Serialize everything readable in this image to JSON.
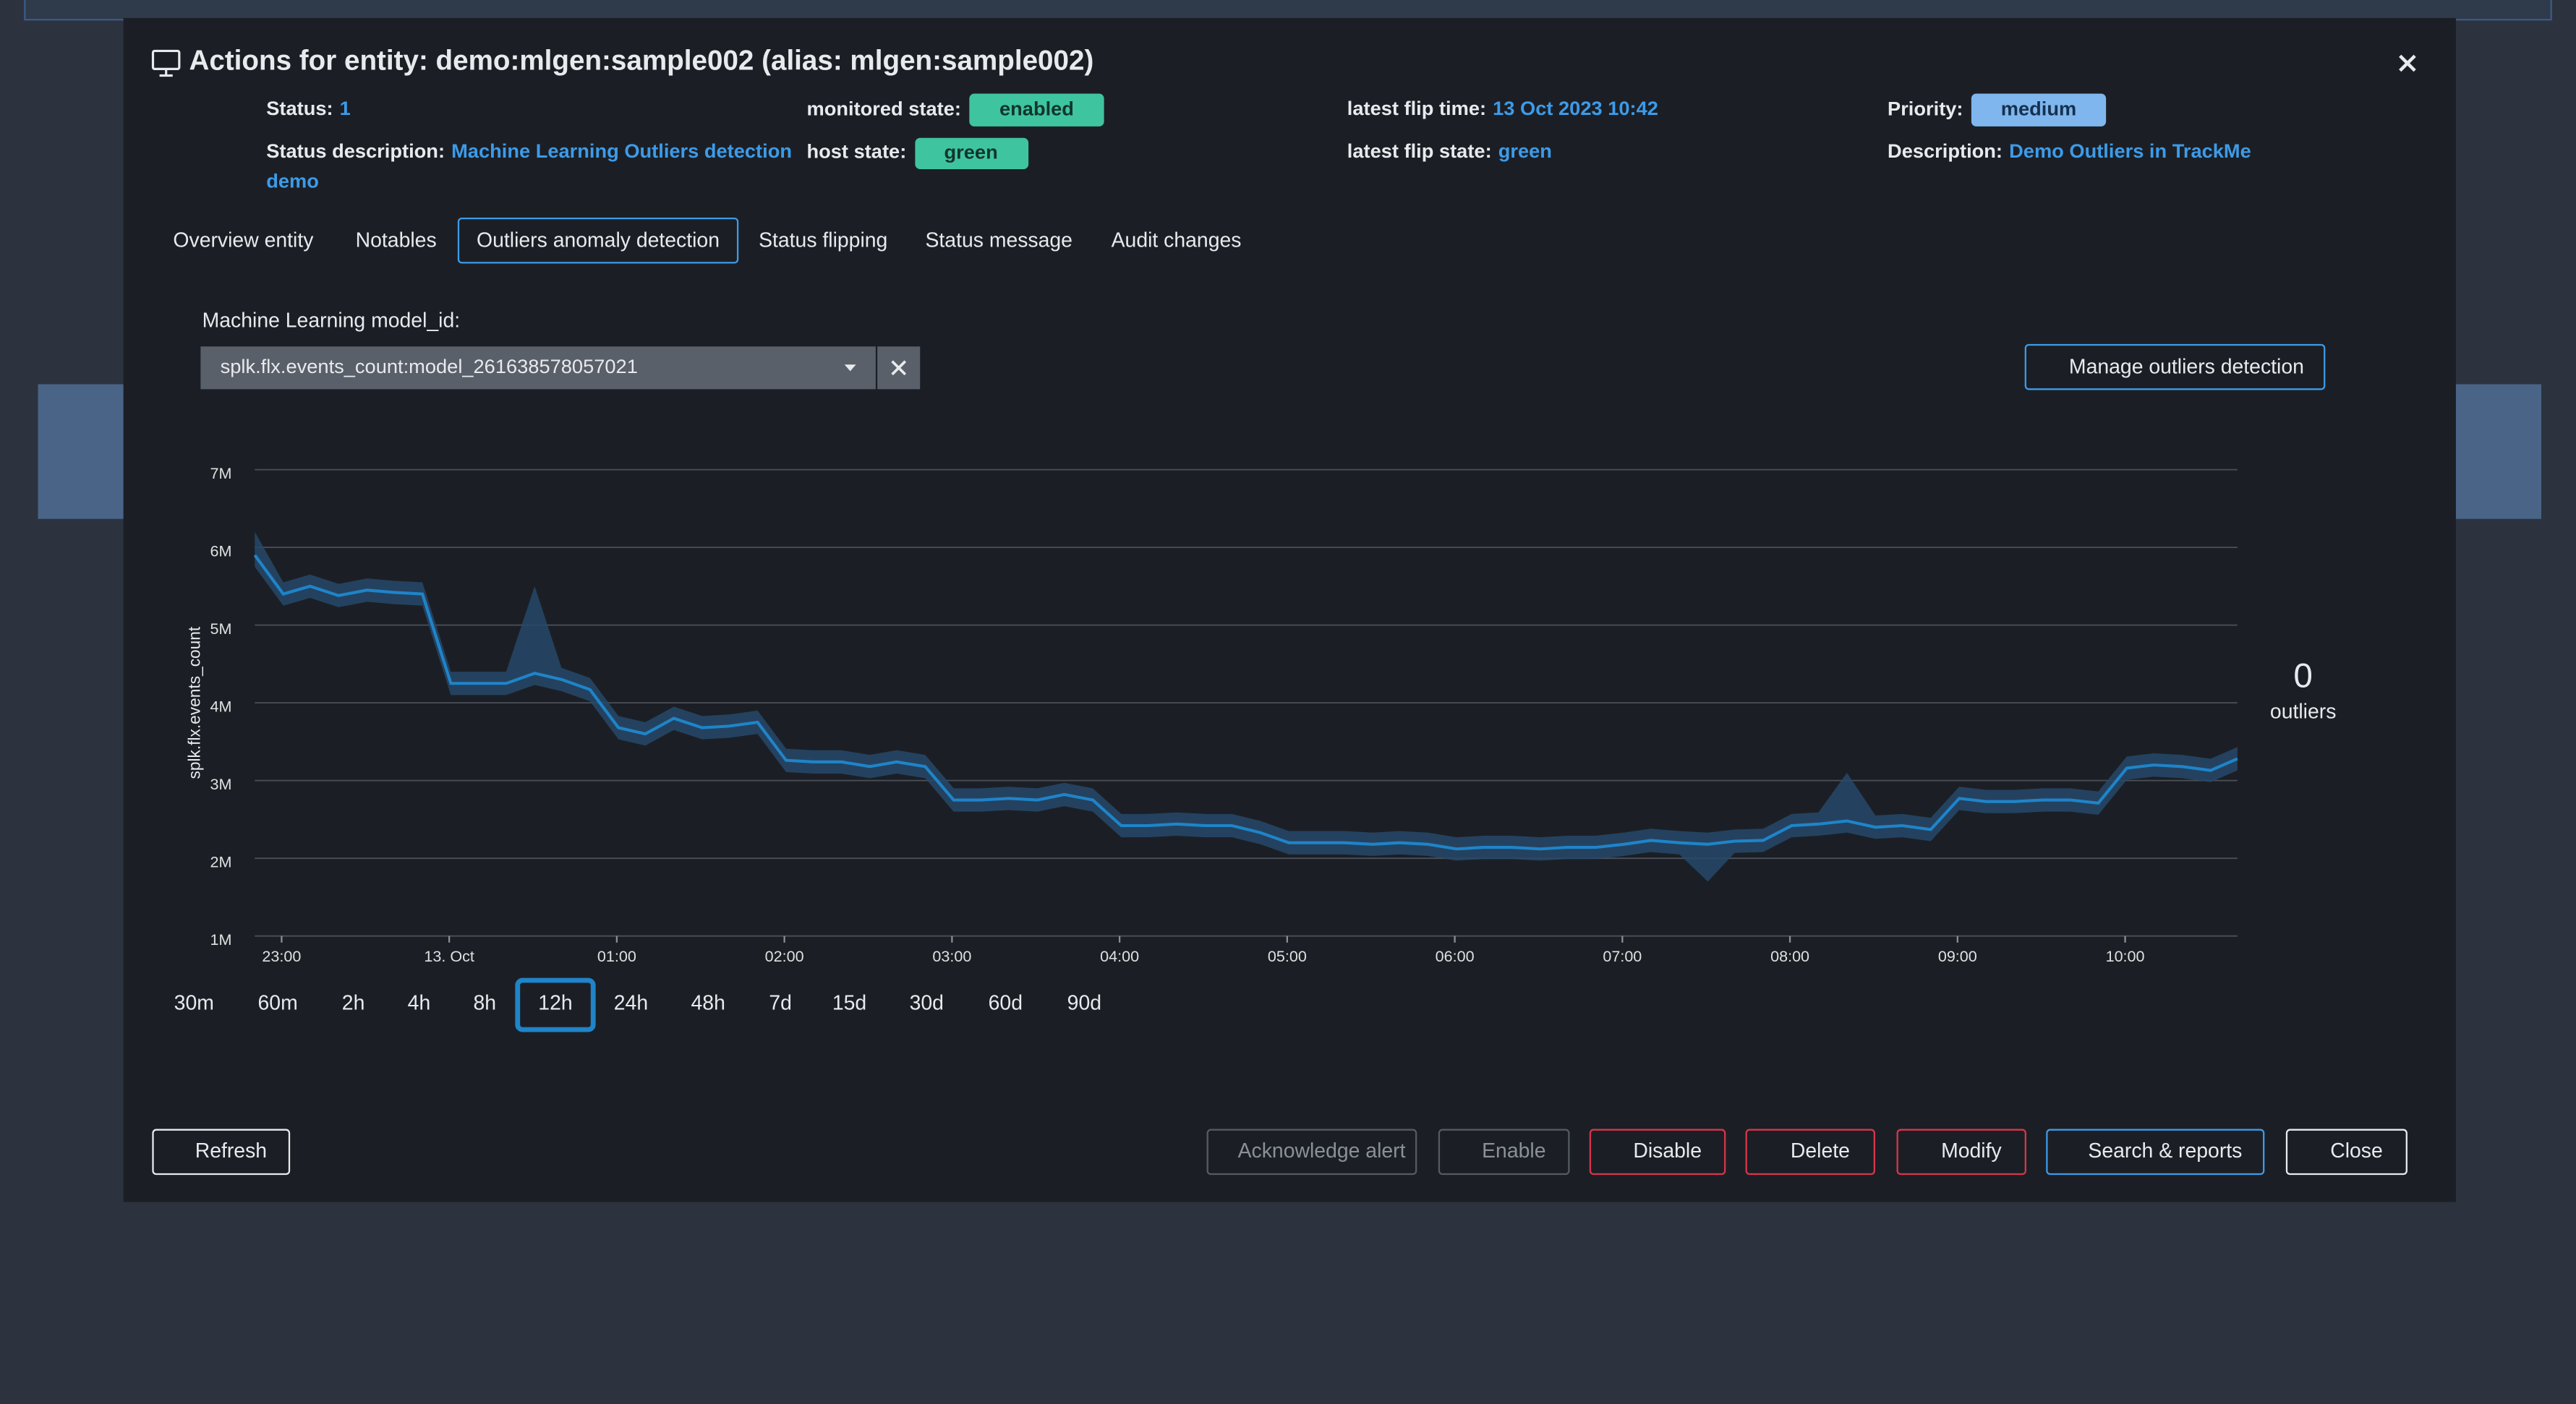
{
  "modal": {
    "title": "Actions for entity: demo:mlgen:sample002 (alias: mlgen:sample002)",
    "status": {
      "label": "Status:",
      "value": "1"
    },
    "monitored_state": {
      "label": "monitored state:",
      "value": "enabled"
    },
    "latest_flip_time": {
      "label": "latest flip time:",
      "value": "13 Oct 2023 10:42"
    },
    "priority": {
      "label": "Priority:",
      "value": "medium"
    },
    "status_description": {
      "label": "Status description:",
      "value_lines": [
        "Machine Learning Outliers detection",
        "demo"
      ]
    },
    "host_state": {
      "label": "host state:",
      "value": "green"
    },
    "latest_flip_state": {
      "label": "latest flip state:",
      "value": "green"
    },
    "description": {
      "label": "Description:",
      "value": "Demo Outliers in TrackMe"
    },
    "tabs": [
      "Overview entity",
      "Notables",
      "Outliers anomaly detection",
      "Status flipping",
      "Status message",
      "Audit changes"
    ],
    "active_tab": 2,
    "model_label": "Machine Learning model_id:",
    "model_value": "splk.flx.events_count:model_261638578057021",
    "manage_button": "Manage outliers detection",
    "outliers": {
      "count": "0",
      "label": "outliers"
    },
    "time_ranges": [
      "30m",
      "60m",
      "2h",
      "4h",
      "8h",
      "12h",
      "24h",
      "48h",
      "7d",
      "15d",
      "30d",
      "60d",
      "90d"
    ],
    "active_range": 5,
    "buttons": [
      "Refresh",
      "Acknowledge alert",
      "Enable",
      "Disable",
      "Delete",
      "Modify",
      "Search & reports",
      "Close"
    ]
  },
  "chart_data": {
    "type": "line",
    "y_label": "splk.flx.events_count",
    "color": "#1f84c9",
    "band_color": "#26496a",
    "grid": true,
    "xlim": [
      -0.16,
      11.67
    ],
    "xticks": [
      {
        "value": 0,
        "label": "23:00"
      },
      {
        "value": 1,
        "label": "13. Oct"
      },
      {
        "value": 2,
        "label": "01:00"
      },
      {
        "value": 3,
        "label": "02:00"
      },
      {
        "value": 4,
        "label": "03:00"
      },
      {
        "value": 5,
        "label": "04:00"
      },
      {
        "value": 6,
        "label": "05:00"
      },
      {
        "value": 7,
        "label": "06:00"
      },
      {
        "value": 8,
        "label": "07:00"
      },
      {
        "value": 9,
        "label": "08:00"
      },
      {
        "value": 10,
        "label": "09:00"
      },
      {
        "value": 11,
        "label": "10:00"
      }
    ],
    "ylim": [
      1000000,
      7000000
    ],
    "yticks": [
      {
        "value": 1000000,
        "label": "1M"
      },
      {
        "value": 2000000,
        "label": "2M"
      },
      {
        "value": 3000000,
        "label": "3M"
      },
      {
        "value": 4000000,
        "label": "4M"
      },
      {
        "value": 5000000,
        "label": "5M"
      },
      {
        "value": 6000000,
        "label": "6M"
      },
      {
        "value": 7000000,
        "label": "7M"
      }
    ],
    "x": [
      -0.16,
      0.01,
      0.17,
      0.34,
      0.51,
      0.67,
      0.84,
      1.01,
      1.17,
      1.34,
      1.51,
      1.67,
      1.84,
      2.01,
      2.17,
      2.34,
      2.51,
      2.67,
      2.84,
      3.01,
      3.17,
      3.34,
      3.51,
      3.67,
      3.84,
      4.01,
      4.17,
      4.34,
      4.51,
      4.67,
      4.84,
      5.01,
      5.17,
      5.34,
      5.51,
      5.67,
      5.84,
      6.01,
      6.17,
      6.34,
      6.51,
      6.67,
      6.84,
      7.01,
      7.17,
      7.34,
      7.51,
      7.67,
      7.84,
      8.01,
      8.17,
      8.34,
      8.51,
      8.67,
      8.84,
      9.01,
      9.17,
      9.34,
      9.51,
      9.67,
      9.84,
      10.01,
      10.17,
      10.34,
      10.51,
      10.67,
      10.84,
      11.01,
      11.17,
      11.34,
      11.51,
      11.67
    ],
    "values": [
      5900000,
      5400000,
      5500000,
      5380000,
      5450000,
      5420000,
      5400000,
      4250000,
      4250000,
      4250000,
      4380000,
      4300000,
      4170000,
      3680000,
      3600000,
      3800000,
      3680000,
      3700000,
      3750000,
      3260000,
      3240000,
      3240000,
      3180000,
      3240000,
      3180000,
      2750000,
      2750000,
      2770000,
      2750000,
      2820000,
      2750000,
      2420000,
      2420000,
      2440000,
      2420000,
      2420000,
      2330000,
      2200000,
      2200000,
      2200000,
      2180000,
      2200000,
      2180000,
      2120000,
      2140000,
      2140000,
      2120000,
      2140000,
      2140000,
      2180000,
      2230000,
      2200000,
      2180000,
      2220000,
      2230000,
      2420000,
      2440000,
      2480000,
      2400000,
      2420000,
      2370000,
      2770000,
      2730000,
      2730000,
      2750000,
      2750000,
      2710000,
      3160000,
      3200000,
      3180000,
      3130000,
      3280000
    ],
    "band_lower": [
      5750000,
      5250000,
      5350000,
      5230000,
      5300000,
      5270000,
      5250000,
      4100000,
      4100000,
      4100000,
      4230000,
      4150000,
      4020000,
      3530000,
      3450000,
      3650000,
      3530000,
      3550000,
      3600000,
      3110000,
      3090000,
      3090000,
      3030000,
      3090000,
      3030000,
      2600000,
      2600000,
      2620000,
      2600000,
      2670000,
      2600000,
      2270000,
      2270000,
      2290000,
      2270000,
      2270000,
      2180000,
      2050000,
      2050000,
      2050000,
      2030000,
      2050000,
      2030000,
      1970000,
      1990000,
      1990000,
      1970000,
      1990000,
      1990000,
      2030000,
      2080000,
      2050000,
      1700000,
      2070000,
      2080000,
      2270000,
      2290000,
      2330000,
      2250000,
      2270000,
      2220000,
      2620000,
      2580000,
      2580000,
      2600000,
      2600000,
      2560000,
      3010000,
      3050000,
      3030000,
      2980000,
      3130000
    ],
    "band_upper": [
      6200000,
      5550000,
      5650000,
      5530000,
      5600000,
      5570000,
      5550000,
      4400000,
      4400000,
      4400000,
      5500000,
      4450000,
      4320000,
      3830000,
      3750000,
      3950000,
      3830000,
      3850000,
      3900000,
      3410000,
      3390000,
      3390000,
      3330000,
      3390000,
      3330000,
      2900000,
      2900000,
      2920000,
      2900000,
      2970000,
      2900000,
      2570000,
      2570000,
      2590000,
      2570000,
      2570000,
      2480000,
      2350000,
      2350000,
      2350000,
      2330000,
      2350000,
      2330000,
      2270000,
      2290000,
      2290000,
      2270000,
      2290000,
      2290000,
      2330000,
      2380000,
      2350000,
      2330000,
      2370000,
      2380000,
      2570000,
      2590000,
      3100000,
      2550000,
      2570000,
      2520000,
      2920000,
      2880000,
      2880000,
      2900000,
      2900000,
      2860000,
      3310000,
      3350000,
      3330000,
      3280000,
      3430000
    ]
  }
}
